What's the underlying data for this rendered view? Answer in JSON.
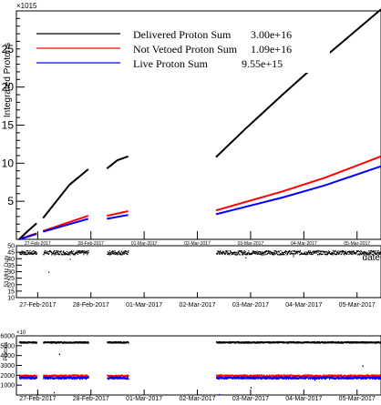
{
  "chart_data": [
    {
      "type": "line",
      "title": "",
      "xlabel": "date",
      "ylabel": "Integrated Protons",
      "exponent_label": "×10^15",
      "ylim": [
        0,
        30
      ],
      "yticks": [
        5,
        10,
        15,
        20,
        25
      ],
      "x_tick_labels": [
        "27-Feb-2017",
        "28-Feb-2017",
        "01-Mar-2017",
        "02-Mar-2017",
        "03-Mar-2017",
        "04-Mar-2017",
        "05-Mar-2017"
      ],
      "x_range_days": [
        26.6,
        33.45
      ],
      "legend_placement": "top-left",
      "series": [
        {
          "name": "Delivered Proton Sum",
          "summary": "3.00e+16",
          "color": "#000000",
          "segments": [
            [
              [
                26.65,
                0.0
              ],
              [
                26.8,
                1.0
              ],
              [
                26.98,
                2.1
              ]
            ],
            [
              [
                27.1,
                2.8
              ],
              [
                27.6,
                7.2
              ],
              [
                27.95,
                9.2
              ]
            ],
            [
              [
                28.3,
                9.3
              ],
              [
                28.5,
                10.4
              ],
              [
                28.7,
                10.9
              ]
            ],
            [
              [
                30.35,
                10.8
              ],
              [
                30.9,
                14.5
              ],
              [
                31.6,
                19.0
              ],
              [
                32.4,
                24.0
              ],
              [
                33.45,
                30.2
              ]
            ]
          ]
        },
        {
          "name": "Not Vetoed Proton Sum",
          "summary": "1.09e+16",
          "color": "#ff0000",
          "segments": [
            [
              [
                26.65,
                0.0
              ],
              [
                26.98,
                0.8
              ]
            ],
            [
              [
                27.1,
                1.1
              ],
              [
                27.95,
                3.1
              ]
            ],
            [
              [
                28.3,
                3.1
              ],
              [
                28.7,
                3.7
              ]
            ],
            [
              [
                30.35,
                3.8
              ],
              [
                31.6,
                6.3
              ],
              [
                32.4,
                8.1
              ],
              [
                33.45,
                10.9
              ]
            ]
          ]
        },
        {
          "name": "Live Proton Sum",
          "summary": "9.55e+15",
          "color": "#0000ff",
          "segments": [
            [
              [
                26.65,
                0.0
              ],
              [
                26.98,
                0.7
              ]
            ],
            [
              [
                27.1,
                1.0
              ],
              [
                27.95,
                2.7
              ]
            ],
            [
              [
                28.3,
                2.7
              ],
              [
                28.7,
                3.2
              ]
            ],
            [
              [
                30.35,
                3.3
              ],
              [
                31.6,
                5.5
              ],
              [
                32.4,
                7.1
              ],
              [
                33.45,
                9.6
              ]
            ]
          ]
        }
      ]
    },
    {
      "type": "scatter",
      "ylabel": "53 MHz Duty",
      "ylim": [
        10,
        50
      ],
      "yticks": [
        10,
        15,
        20,
        25,
        30,
        35,
        40,
        45,
        50
      ],
      "x_tick_labels": [
        "27-Feb-2017",
        "28-Feb-2017",
        "01-Mar-2017",
        "02-Mar-2017",
        "03-Mar-2017",
        "04-Mar-2017",
        "05-Mar-2017"
      ],
      "series": [
        {
          "name": "",
          "color": "#000000",
          "typical_value": 45,
          "segments": [
            [
              26.65,
              26.98
            ],
            [
              27.1,
              27.95
            ],
            [
              28.3,
              28.7
            ],
            [
              30.35,
              33.45
            ]
          ],
          "outliers": [
            [
              27.2,
              30
            ],
            [
              27.6,
              40
            ],
            [
              30.9,
              41
            ],
            [
              31.8,
              42
            ],
            [
              33.2,
              44
            ]
          ]
        }
      ]
    },
    {
      "type": "scatter",
      "ylabel": "Protons",
      "exponent_label": "×10^",
      "ylim": [
        0,
        6000
      ],
      "yticks": [
        1000,
        2000,
        3000,
        4000,
        5000,
        6000
      ],
      "x_tick_labels": [
        "27-Feb-2017",
        "28-Feb-2017",
        "01-Mar-2017",
        "02-Mar-2017",
        "03-Mar-2017",
        "04-Mar-2017",
        "05-Mar-2017"
      ],
      "series": [
        {
          "name": "",
          "color": "#000000",
          "typical_value": 5400,
          "segments": [
            [
              26.65,
              26.98
            ],
            [
              27.1,
              27.95
            ],
            [
              28.3,
              28.7
            ],
            [
              30.35,
              33.45
            ]
          ],
          "outliers": [
            [
              27.4,
              4200
            ],
            [
              31.0,
              800
            ],
            [
              32.2,
              1600
            ],
            [
              33.1,
              3000
            ]
          ]
        },
        {
          "name": "",
          "color": "#ff0000",
          "typical_value": 2000,
          "segments": [
            [
              26.65,
              26.98
            ],
            [
              27.1,
              27.95
            ],
            [
              28.3,
              28.7
            ],
            [
              30.35,
              33.45
            ]
          ],
          "outliers": []
        },
        {
          "name": "",
          "color": "#0000ff",
          "typical_value": 1800,
          "segments": [
            [
              26.65,
              26.98
            ],
            [
              27.1,
              27.95
            ],
            [
              28.3,
              28.7
            ],
            [
              30.35,
              33.45
            ]
          ],
          "outliers": [
            [
              27.3,
              300
            ],
            [
              30.4,
              100
            ]
          ]
        }
      ]
    }
  ]
}
